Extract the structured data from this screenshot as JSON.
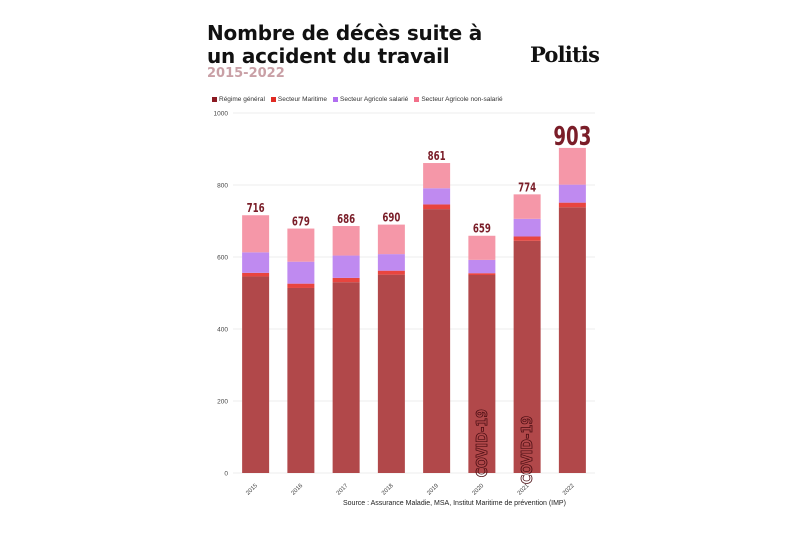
{
  "header": {
    "title": "Nombre de décès suite à un accident du travail",
    "subtitle": "2015-2022",
    "logo": "Politis"
  },
  "source": "Source : Assurance Maladie, MSA, Institut Maritime de prévention (IMP)",
  "colors": {
    "regime_general": "#b1484a",
    "secteur_maritime": "#e8453f",
    "agricole_salarie": "#bf8af0",
    "agricole_non_salarie": "#f597a8",
    "total_label": "#7a1d28",
    "legend_regime_general": "#8b1a22",
    "legend_secteur_maritime": "#e02a22",
    "legend_agricole_salarie": "#b16ef0",
    "legend_agricole_non_salarie": "#f2708a"
  },
  "chart_data": {
    "type": "bar",
    "stacked": true,
    "categories": [
      "2015",
      "2016",
      "2017",
      "2018",
      "2019",
      "2020",
      "2021",
      "2022"
    ],
    "series": [
      {
        "name": "Régime général",
        "values": [
          546,
          514,
          530,
          551,
          733,
          550,
          645,
          738
        ]
      },
      {
        "name": "Secteur Maritime",
        "values": [
          10,
          12,
          12,
          11,
          13,
          5,
          12,
          13
        ]
      },
      {
        "name": "Secteur Agricole salarié",
        "values": [
          57,
          61,
          62,
          46,
          45,
          37,
          49,
          50
        ]
      },
      {
        "name": "Secteur Agricole non-salarié",
        "values": [
          103,
          92,
          82,
          82,
          70,
          67,
          68,
          102
        ]
      }
    ],
    "totals": [
      "716",
      "679",
      "686",
      "690",
      "861",
      "659",
      "774",
      "903"
    ],
    "annotations": [
      {
        "category": "2020",
        "text": "COVID-19"
      },
      {
        "category": "2021",
        "text": "COVID-19"
      }
    ],
    "ylim": [
      0,
      1000
    ],
    "yticks": [
      "0",
      "200",
      "400",
      "600",
      "800",
      "1000"
    ],
    "grid": true,
    "legend_position": "top-left",
    "xlabel": "",
    "ylabel": ""
  }
}
